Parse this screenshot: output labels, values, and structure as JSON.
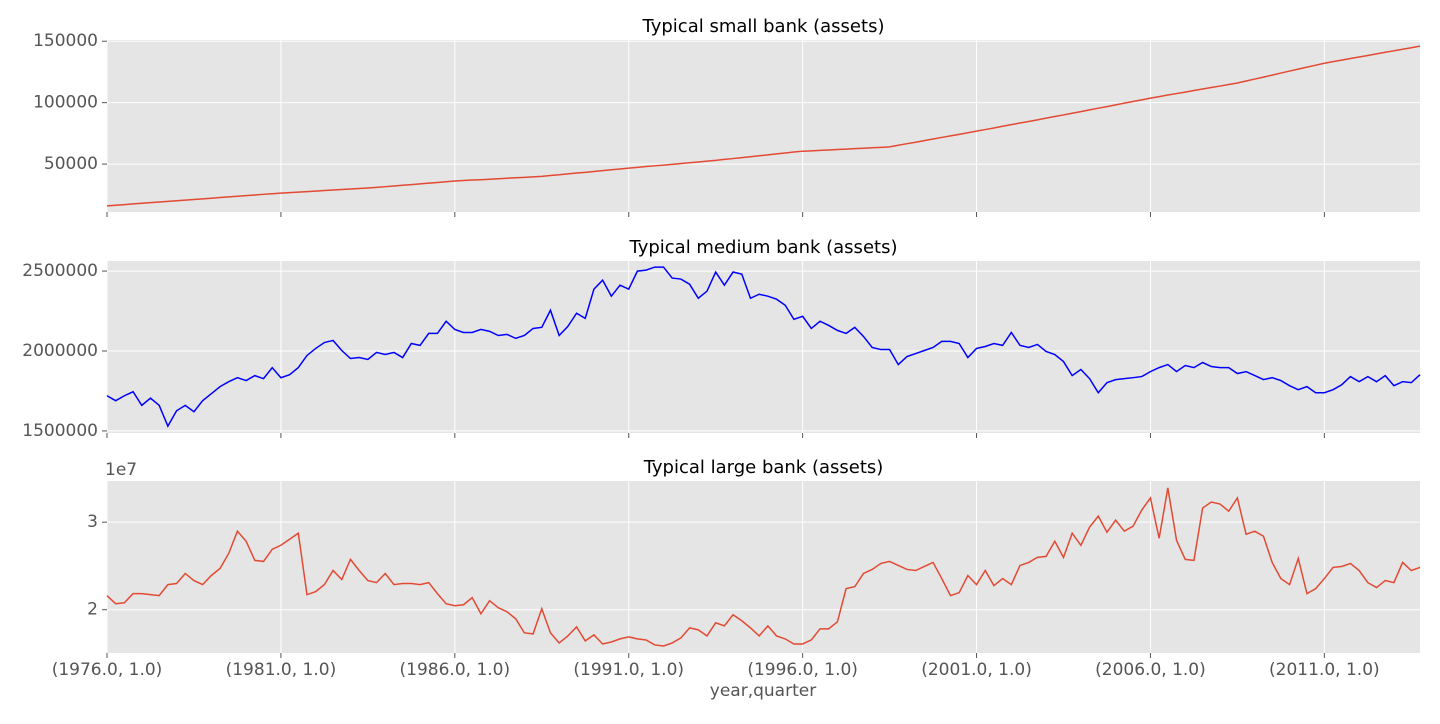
{
  "chart_data": [
    {
      "type": "line",
      "title": "Typical small bank (assets)",
      "color": "#e24a33",
      "grid": true,
      "ylim": [
        11000,
        151000
      ],
      "yticks": [
        50000,
        100000,
        150000
      ],
      "values": [
        16000,
        16500,
        17000,
        17600,
        18100,
        18600,
        19100,
        19600,
        20200,
        20700,
        21200,
        21700,
        22200,
        22800,
        23300,
        23800,
        24300,
        24800,
        25400,
        25900,
        26400,
        26800,
        27200,
        27600,
        28000,
        28500,
        28900,
        29300,
        29700,
        30100,
        30500,
        31000,
        31600,
        32200,
        32800,
        33300,
        33900,
        34500,
        35000,
        35600,
        36200,
        36600,
        37000,
        37300,
        37700,
        38100,
        38500,
        38900,
        39200,
        39600,
        40000,
        40700,
        41300,
        42000,
        42700,
        43300,
        44000,
        44700,
        45400,
        46000,
        46700,
        47300,
        48000,
        48600,
        49200,
        49800,
        50500,
        51100,
        51700,
        52400,
        53000,
        53800,
        54500,
        55300,
        56000,
        56800,
        57500,
        58300,
        59000,
        59800,
        60500,
        60800,
        61200,
        61500,
        61900,
        62200,
        62600,
        62900,
        63300,
        63600,
        64000,
        65300,
        66600,
        67800,
        69100,
        70400,
        71700,
        73000,
        74200,
        75500,
        76800,
        78100,
        79400,
        80800,
        82100,
        83400,
        84700,
        86000,
        87400,
        88700,
        90000,
        91400,
        92700,
        94100,
        95500,
        96800,
        98200,
        99600,
        100900,
        102300,
        103700,
        104900,
        106200,
        107400,
        108600,
        109900,
        111100,
        112300,
        113500,
        114800,
        116000,
        117600,
        119200,
        120800,
        122400,
        124100,
        125700,
        127300,
        128900,
        130500,
        132100,
        133400,
        134600,
        135900,
        137200,
        138400,
        139700,
        141000,
        142200,
        143500,
        144700,
        146000
      ]
    },
    {
      "type": "line",
      "title": "Typical medium bank (assets)",
      "color": "#0000ff",
      "grid": true,
      "ylim": [
        1487000,
        2563000
      ],
      "yticks": [
        1500000,
        2000000,
        2500000
      ],
      "values": [
        1720000,
        1689000,
        1720000,
        1745000,
        1660000,
        1705000,
        1660000,
        1530000,
        1626000,
        1660000,
        1620000,
        1689000,
        1733000,
        1777000,
        1808000,
        1833000,
        1815000,
        1846000,
        1827000,
        1896000,
        1833000,
        1852000,
        1896000,
        1972000,
        2016000,
        2053000,
        2066000,
        2003000,
        1953000,
        1959000,
        1947000,
        1991000,
        1978000,
        1991000,
        1959000,
        2047000,
        2035000,
        2110000,
        2110000,
        2186000,
        2135000,
        2116000,
        2116000,
        2135000,
        2123000,
        2097000,
        2104000,
        2079000,
        2097000,
        2141000,
        2148000,
        2255000,
        2097000,
        2154000,
        2236000,
        2204000,
        2387000,
        2443000,
        2343000,
        2412000,
        2387000,
        2500000,
        2506000,
        2525000,
        2525000,
        2456000,
        2450000,
        2418000,
        2330000,
        2374000,
        2494000,
        2412000,
        2494000,
        2481000,
        2330000,
        2355000,
        2343000,
        2324000,
        2286000,
        2198000,
        2217000,
        2141000,
        2186000,
        2160000,
        2129000,
        2110000,
        2148000,
        2091000,
        2022000,
        2009000,
        2009000,
        1915000,
        1965000,
        1984000,
        2003000,
        2022000,
        2060000,
        2060000,
        2047000,
        1959000,
        2016000,
        2028000,
        2047000,
        2035000,
        2116000,
        2035000,
        2022000,
        2041000,
        1997000,
        1978000,
        1934000,
        1846000,
        1884000,
        1827000,
        1739000,
        1802000,
        1821000,
        1827000,
        1833000,
        1840000,
        1871000,
        1896000,
        1915000,
        1871000,
        1909000,
        1896000,
        1928000,
        1903000,
        1896000,
        1896000,
        1859000,
        1871000,
        1846000,
        1821000,
        1833000,
        1815000,
        1783000,
        1758000,
        1777000,
        1739000,
        1739000,
        1758000,
        1789000,
        1840000,
        1808000,
        1840000,
        1808000,
        1846000,
        1783000,
        1808000,
        1802000,
        1852000
      ]
    },
    {
      "type": "line",
      "title": "Typical large bank (assets)",
      "color": "#e24a33",
      "grid": true,
      "ylim": [
        15060000,
        34700000
      ],
      "yticks": [
        {
          "value": 20000000,
          "label": "2"
        },
        {
          "value": 30000000,
          "label": "3"
        }
      ],
      "offset_text": "1e7",
      "xlabel": "year,quarter",
      "xlim": [
        0,
        151
      ],
      "xticks": [
        {
          "value": 0,
          "label": "(1976.0, 1.0)"
        },
        {
          "value": 20,
          "label": "(1981.0, 1.0)"
        },
        {
          "value": 40,
          "label": "(1986.0, 1.0)"
        },
        {
          "value": 60,
          "label": "(1991.0, 1.0)"
        },
        {
          "value": 80,
          "label": "(1996.0, 1.0)"
        },
        {
          "value": 100,
          "label": "(2001.0, 1.0)"
        },
        {
          "value": 120,
          "label": "(2006.0, 1.0)"
        },
        {
          "value": 140,
          "label": "(2011.0, 1.0)"
        }
      ],
      "values": [
        21610000,
        20690000,
        20800000,
        21840000,
        21840000,
        21720000,
        21610000,
        22870000,
        22990000,
        24140000,
        23330000,
        22870000,
        23910000,
        24710000,
        26440000,
        28970000,
        27820000,
        25630000,
        25520000,
        26900000,
        27360000,
        28050000,
        28740000,
        21720000,
        22070000,
        22870000,
        24480000,
        23450000,
        25750000,
        24480000,
        23330000,
        23100000,
        24140000,
        22870000,
        22990000,
        22990000,
        22870000,
        23100000,
        21840000,
        20690000,
        20460000,
        20570000,
        21380000,
        19540000,
        21030000,
        20230000,
        19770000,
        18970000,
        17360000,
        17240000,
        20110000,
        17360000,
        16210000,
        17010000,
        18050000,
        16440000,
        17130000,
        16090000,
        16320000,
        16670000,
        16900000,
        16670000,
        16550000,
        15980000,
        15860000,
        16210000,
        16780000,
        17930000,
        17700000,
        17010000,
        18510000,
        18160000,
        19430000,
        18740000,
        17930000,
        17010000,
        18160000,
        17010000,
        16670000,
        16090000,
        16090000,
        16550000,
        17820000,
        17820000,
        18620000,
        22410000,
        22640000,
        24140000,
        24600000,
        25290000,
        25520000,
        25060000,
        24600000,
        24480000,
        24940000,
        25400000,
        23560000,
        21610000,
        21950000,
        23910000,
        22870000,
        24480000,
        22760000,
        23560000,
        22870000,
        25060000,
        25400000,
        25980000,
        26090000,
        27820000,
        25980000,
        28740000,
        27360000,
        29430000,
        30690000,
        28850000,
        30230000,
        28970000,
        29540000,
        31380000,
        32760000,
        28160000,
        33910000,
        27930000,
        25750000,
        25630000,
        31610000,
        32300000,
        32070000,
        31260000,
        32760000,
        28620000,
        28970000,
        28390000,
        25400000,
        23560000,
        22870000,
        25860000,
        21840000,
        22410000,
        23560000,
        24830000,
        24940000,
        25290000,
        24480000,
        23100000,
        22530000,
        23330000,
        23100000,
        25400000,
        24480000,
        24830000
      ]
    }
  ]
}
